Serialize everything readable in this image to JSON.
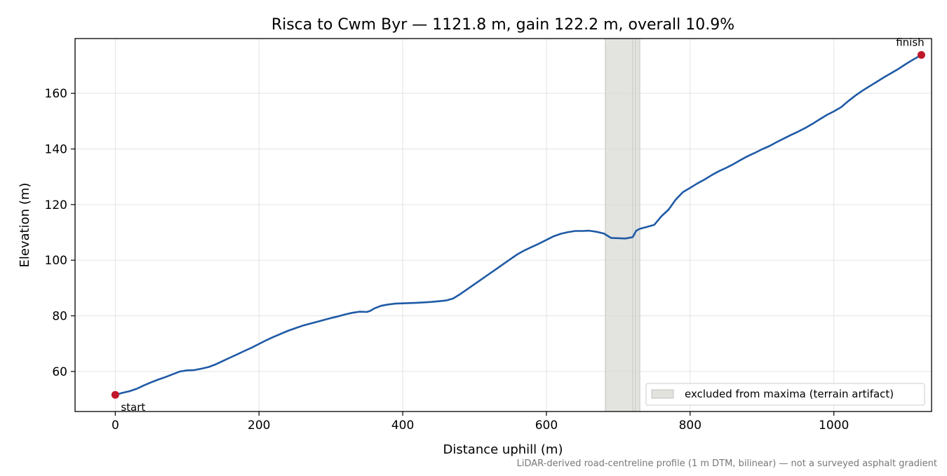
{
  "chart_data": {
    "type": "line",
    "title": "Risca to Cwm Byr — 1121.8 m, gain 122.2 m, overall 10.9%",
    "xlabel": "Distance uphill (m)",
    "ylabel": "Elevation (m)",
    "xlim": [
      -56,
      1136
    ],
    "ylim": [
      45.6,
      179.7
    ],
    "xticks": [
      0,
      200,
      400,
      600,
      800,
      1000
    ],
    "yticks": [
      60,
      80,
      100,
      120,
      140,
      160
    ],
    "grid": true,
    "legend_position": "bottom-right",
    "footnote": "LiDAR-derived road-centreline profile (1 m DTM, bilinear) — not a surveyed asphalt gradient",
    "colors": {
      "line": "#1f5aa6",
      "endpoints": "#c0182a",
      "shade": "#d9d9d6",
      "grid": "#e3e3e3"
    },
    "series": [
      {
        "x": [
          0,
          10,
          20,
          30,
          40,
          50,
          60,
          70,
          80,
          90,
          100,
          110,
          120,
          130,
          140,
          150,
          160,
          170,
          180,
          190,
          200,
          210,
          220,
          230,
          240,
          250,
          260,
          270,
          280,
          290,
          300,
          310,
          320,
          330,
          340,
          350,
          355,
          360,
          370,
          380,
          390,
          400,
          410,
          420,
          440,
          460,
          470,
          480,
          490,
          500,
          510,
          520,
          530,
          540,
          550,
          560,
          570,
          580,
          590,
          600,
          610,
          620,
          630,
          640,
          650,
          660,
          670,
          680,
          690,
          700,
          710,
          720,
          725,
          730,
          740,
          750,
          760,
          770,
          780,
          790,
          800,
          810,
          820,
          830,
          840,
          850,
          860,
          870,
          880,
          890,
          900,
          910,
          920,
          930,
          940,
          950,
          960,
          970,
          980,
          990,
          1000,
          1010,
          1020,
          1030,
          1040,
          1050,
          1060,
          1070,
          1080,
          1090,
          1100,
          1110,
          1121.8
        ],
        "y": [
          51.6,
          52.3,
          52.9,
          53.8,
          55.0,
          56.1,
          57.1,
          58.0,
          59.0,
          60.0,
          60.4,
          60.5,
          61.0,
          61.6,
          62.6,
          63.8,
          65.0,
          66.2,
          67.4,
          68.6,
          69.9,
          71.2,
          72.4,
          73.5,
          74.6,
          75.5,
          76.4,
          77.1,
          77.8,
          78.5,
          79.2,
          79.8,
          80.5,
          81.1,
          81.5,
          81.4,
          81.8,
          82.6,
          83.6,
          84.1,
          84.4,
          84.5,
          84.6,
          84.7,
          85.0,
          85.5,
          86.2,
          87.8,
          89.6,
          91.4,
          93.2,
          95.0,
          96.8,
          98.6,
          100.4,
          102.2,
          103.6,
          104.8,
          106.0,
          107.3,
          108.6,
          109.5,
          110.1,
          110.5,
          110.5,
          110.6,
          110.2,
          109.6,
          108.0,
          107.9,
          107.8,
          108.3,
          110.6,
          111.3,
          112.0,
          112.7,
          115.8,
          118.2,
          121.8,
          124.5,
          126.0,
          127.6,
          129.0,
          130.6,
          132.0,
          133.2,
          134.5,
          136.0,
          137.4,
          138.6,
          139.9,
          141.0,
          142.4,
          143.7,
          145.0,
          146.2,
          147.5,
          149.0,
          150.6,
          152.2,
          153.5,
          155.0,
          157.2,
          159.2,
          161.0,
          162.6,
          164.2,
          165.8,
          167.3,
          168.8,
          170.5,
          172.1,
          173.8
        ]
      }
    ],
    "excluded_region": [
      682,
      730
    ],
    "excluded_label": "excluded from maxima (terrain artifact)",
    "annotations": [
      {
        "text": "start",
        "x": 0,
        "y": 51.6
      },
      {
        "text": "finish",
        "x": 1121.8,
        "y": 173.8
      }
    ]
  }
}
